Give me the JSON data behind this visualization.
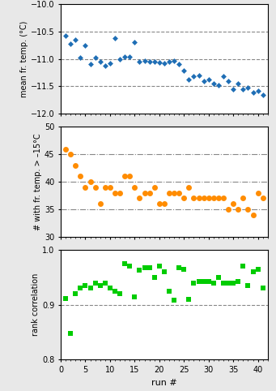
{
  "panel1": {
    "x": [
      1,
      2,
      3,
      4,
      5,
      6,
      7,
      8,
      9,
      10,
      11,
      12,
      13,
      14,
      15,
      16,
      17,
      18,
      19,
      20,
      21,
      22,
      23,
      24,
      25,
      26,
      27,
      28,
      29,
      30,
      31,
      32,
      33,
      34,
      35,
      36,
      37,
      38,
      39,
      40,
      41
    ],
    "y": [
      -10.58,
      -10.72,
      -10.65,
      -10.98,
      -10.75,
      -11.1,
      -10.98,
      -11.05,
      -11.12,
      -11.08,
      -10.62,
      -11.0,
      -10.97,
      -10.96,
      -10.7,
      -11.05,
      -11.03,
      -11.05,
      -11.05,
      -11.07,
      -11.08,
      -11.05,
      -11.03,
      -11.1,
      -11.22,
      -11.38,
      -11.32,
      -11.3,
      -11.4,
      -11.38,
      -11.45,
      -11.48,
      -11.32,
      -11.4,
      -11.55,
      -11.45,
      -11.55,
      -11.52,
      -11.62,
      -11.58,
      -11.65
    ],
    "ylabel": "mean fr. temp. (°C)",
    "ylim": [
      -12.0,
      -10.0
    ],
    "yticks": [
      -12.0,
      -11.5,
      -11.0,
      -10.5,
      -10.0
    ],
    "grid_lines": [
      -10.5,
      -11.0,
      -11.5
    ],
    "grid_style": "dashed",
    "color": "#1f6eb5",
    "marker": "D",
    "markersize": 3.5
  },
  "panel2": {
    "x": [
      1,
      2,
      3,
      4,
      5,
      6,
      7,
      8,
      9,
      10,
      11,
      12,
      13,
      14,
      15,
      16,
      17,
      18,
      19,
      20,
      21,
      22,
      23,
      24,
      25,
      26,
      27,
      28,
      29,
      30,
      31,
      32,
      33,
      34,
      35,
      36,
      37,
      38,
      39,
      40,
      41
    ],
    "y": [
      46,
      45,
      43,
      41,
      39,
      40,
      39,
      36,
      39,
      39,
      38,
      38,
      41,
      41,
      39,
      37,
      38,
      38,
      39,
      36,
      36,
      38,
      38,
      38,
      37,
      39,
      37,
      37,
      37,
      37,
      37,
      37,
      37,
      35,
      36,
      35,
      37,
      35,
      34,
      38,
      37
    ],
    "ylabel": "# with fr. temp. > –15°C",
    "ylim": [
      30,
      50
    ],
    "yticks": [
      30,
      35,
      40,
      45,
      50
    ],
    "grid_lines": [
      35,
      40,
      45
    ],
    "grid_style": "dashdot",
    "color": "#ff8c00",
    "marker": "o",
    "markersize": 5
  },
  "panel3": {
    "x": [
      1,
      2,
      3,
      4,
      5,
      6,
      7,
      8,
      9,
      10,
      11,
      12,
      13,
      14,
      15,
      16,
      17,
      18,
      19,
      20,
      21,
      22,
      23,
      24,
      25,
      26,
      27,
      28,
      29,
      30,
      31,
      32,
      33,
      34,
      35,
      36,
      37,
      38,
      39,
      40,
      41
    ],
    "y": [
      0.912,
      0.848,
      0.92,
      0.93,
      0.935,
      0.93,
      0.94,
      0.935,
      0.94,
      0.93,
      0.925,
      0.92,
      0.975,
      0.97,
      0.915,
      0.963,
      0.967,
      0.968,
      0.95,
      0.97,
      0.96,
      0.925,
      0.908,
      0.968,
      0.965,
      0.91,
      0.94,
      0.942,
      0.943,
      0.942,
      0.94,
      0.95,
      0.94,
      0.94,
      0.94,
      0.942,
      0.97,
      0.935,
      0.96,
      0.965,
      0.93
    ],
    "ylabel": "rank correlation",
    "ylim": [
      0.8,
      1.0
    ],
    "yticks": [
      0.8,
      0.9,
      1.0
    ],
    "grid_lines": [
      0.9
    ],
    "grid_style": "dashed",
    "color": "#00cc00",
    "marker": "s",
    "markersize": 4
  },
  "xlabel": "run #",
  "xlim": [
    0,
    42
  ],
  "xticks": [
    0,
    5,
    10,
    15,
    20,
    25,
    30,
    35,
    40
  ],
  "bg_color": "#e8e8e8",
  "plot_bg": "#ffffff"
}
